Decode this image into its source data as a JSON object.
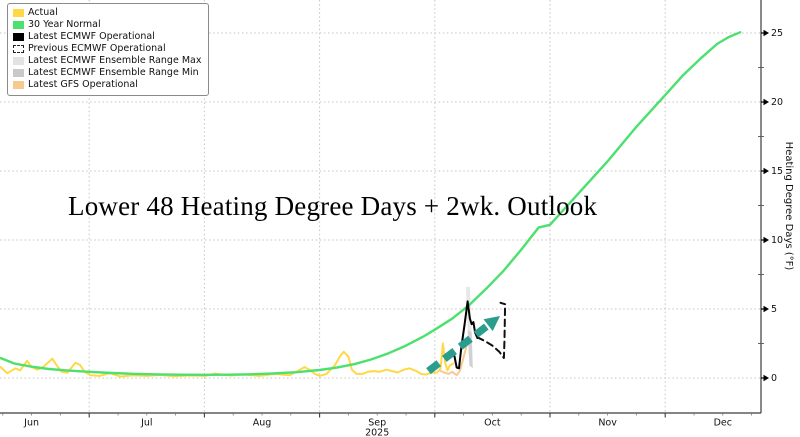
{
  "chart": {
    "title": "Lower 48 Heating Degree Days + 2wk. Outlook",
    "legend": [
      {
        "label": "Actual",
        "swatch": "solid",
        "color": "#ffd845"
      },
      {
        "label": "30 Year Normal",
        "swatch": "solid",
        "color": "#4ce06e"
      },
      {
        "label": "Latest ECMWF Operational",
        "swatch": "solid",
        "color": "#000000"
      },
      {
        "label": "Previous ECMWF Operational",
        "swatch": "dashed-outline",
        "color": "#222222"
      },
      {
        "label": "Latest ECMWF Ensemble Range Max",
        "swatch": "solid",
        "color": "#e2e2e2"
      },
      {
        "label": "Latest ECMWF Ensemble Range Min",
        "swatch": "solid",
        "color": "#c9c9c9"
      },
      {
        "label": "Latest GFS Operational",
        "swatch": "solid",
        "color": "#f6c98e"
      }
    ]
  },
  "chart_data": {
    "type": "line",
    "title": "Lower 48 Heating Degree Days + 2wk. Outlook",
    "xlabel": "",
    "ylabel": "Heating Degree Days (°F)",
    "x_unit_note": "decimal month of 2025: 6.0 = Jun 1, 7.0 = Jul 1 ... 13.0 = Jan 1",
    "x_range": [
      6.22,
      12.85
    ],
    "ylim": [
      0,
      25
    ],
    "grid": "dotted",
    "legend_position": "upper-left",
    "x_axis": {
      "month_labels": [
        "Jun",
        "Jul",
        "Aug",
        "Sep",
        "Oct",
        "Nov",
        "Dec"
      ],
      "first_month_number": 6,
      "year_label": "2025",
      "year_under_month": "Sep"
    },
    "y_axis": {
      "major_ticks": [
        0,
        5,
        10,
        15,
        20,
        25
      ],
      "minor_step": 2.5,
      "label": "Heating Degree Days (°F)",
      "side": "right"
    },
    "series": [
      {
        "name": "Actual",
        "color": "#ffd845",
        "style": "solid",
        "width": 2,
        "points": [
          [
            6.23,
            0.8
          ],
          [
            6.29,
            0.35
          ],
          [
            6.36,
            0.7
          ],
          [
            6.4,
            0.55
          ],
          [
            6.46,
            1.25
          ],
          [
            6.5,
            0.8
          ],
          [
            6.55,
            0.6
          ],
          [
            6.6,
            0.8
          ],
          [
            6.68,
            1.4
          ],
          [
            6.72,
            0.9
          ],
          [
            6.76,
            0.45
          ],
          [
            6.81,
            0.38
          ],
          [
            6.88,
            1.1
          ],
          [
            6.92,
            0.95
          ],
          [
            6.96,
            0.45
          ],
          [
            7.01,
            0.2
          ],
          [
            7.09,
            0.15
          ],
          [
            7.18,
            0.35
          ],
          [
            7.27,
            0.1
          ],
          [
            7.38,
            0.2
          ],
          [
            7.5,
            0.15
          ],
          [
            7.61,
            0.22
          ],
          [
            7.74,
            0.12
          ],
          [
            7.87,
            0.18
          ],
          [
            8.01,
            0.15
          ],
          [
            8.09,
            0.32
          ],
          [
            8.22,
            0.18
          ],
          [
            8.35,
            0.25
          ],
          [
            8.48,
            0.15
          ],
          [
            8.61,
            0.3
          ],
          [
            8.74,
            0.2
          ],
          [
            8.83,
            0.6
          ],
          [
            8.87,
            0.8
          ],
          [
            8.92,
            0.55
          ],
          [
            8.96,
            0.3
          ],
          [
            9.0,
            0.15
          ],
          [
            9.06,
            0.3
          ],
          [
            9.13,
            0.9
          ],
          [
            9.18,
            1.6
          ],
          [
            9.21,
            1.9
          ],
          [
            9.25,
            1.55
          ],
          [
            9.28,
            0.6
          ],
          [
            9.32,
            0.3
          ],
          [
            9.37,
            0.3
          ],
          [
            9.42,
            0.45
          ],
          [
            9.47,
            0.5
          ],
          [
            9.52,
            0.45
          ],
          [
            9.58,
            0.6
          ],
          [
            9.63,
            0.5
          ],
          [
            9.68,
            0.4
          ],
          [
            9.73,
            0.6
          ],
          [
            9.78,
            0.7
          ],
          [
            9.84,
            0.5
          ],
          [
            9.88,
            0.3
          ],
          [
            9.92,
            0.25
          ],
          [
            9.98,
            0.4
          ],
          [
            10.02,
            0.4
          ],
          [
            10.05,
            0.7
          ],
          [
            10.07,
            2.5
          ],
          [
            10.09,
            1.1
          ],
          [
            10.11,
            0.55
          ],
          [
            10.13,
            0.9
          ],
          [
            10.16,
            1.05
          ]
        ]
      },
      {
        "name": "Latest GFS Operational",
        "color": "#f6c98e",
        "style": "solid",
        "width": 2,
        "points": [
          [
            10.04,
            0.55
          ],
          [
            10.08,
            0.4
          ],
          [
            10.12,
            0.3
          ],
          [
            10.15,
            0.45
          ],
          [
            10.19,
            0.2
          ],
          [
            10.22,
            0.55
          ],
          [
            10.25,
            1.5
          ],
          [
            10.28,
            2.5
          ]
        ]
      },
      {
        "name": "30 Year Normal",
        "color": "#4ce06e",
        "style": "solid",
        "width": 2.4,
        "points": [
          [
            6.23,
            1.45
          ],
          [
            6.35,
            1.05
          ],
          [
            6.5,
            0.82
          ],
          [
            6.65,
            0.65
          ],
          [
            6.8,
            0.55
          ],
          [
            7.0,
            0.45
          ],
          [
            7.2,
            0.36
          ],
          [
            7.4,
            0.3
          ],
          [
            7.6,
            0.26
          ],
          [
            7.8,
            0.24
          ],
          [
            8.0,
            0.23
          ],
          [
            8.2,
            0.24
          ],
          [
            8.4,
            0.27
          ],
          [
            8.6,
            0.33
          ],
          [
            8.8,
            0.42
          ],
          [
            9.0,
            0.58
          ],
          [
            9.15,
            0.75
          ],
          [
            9.3,
            1.0
          ],
          [
            9.45,
            1.35
          ],
          [
            9.6,
            1.8
          ],
          [
            9.75,
            2.35
          ],
          [
            9.9,
            3.0
          ],
          [
            10.0,
            3.5
          ],
          [
            10.15,
            4.3
          ],
          [
            10.3,
            5.3
          ],
          [
            10.45,
            6.5
          ],
          [
            10.6,
            7.8
          ],
          [
            10.75,
            9.3
          ],
          [
            10.9,
            10.9
          ],
          [
            11.0,
            11.1
          ],
          [
            11.25,
            13.4
          ],
          [
            11.5,
            15.7
          ],
          [
            11.75,
            18.2
          ],
          [
            12.0,
            20.5
          ],
          [
            12.15,
            21.9
          ],
          [
            12.3,
            23.1
          ],
          [
            12.45,
            24.2
          ],
          [
            12.55,
            24.7
          ],
          [
            12.65,
            25.05
          ]
        ]
      },
      {
        "name": "Latest ECMWF Operational",
        "color": "#000000",
        "style": "solid",
        "width": 2,
        "points": [
          [
            10.17,
            1.6
          ],
          [
            10.19,
            0.75
          ],
          [
            10.21,
            0.7
          ],
          [
            10.23,
            2.2
          ],
          [
            10.26,
            4.0
          ],
          [
            10.285,
            5.55
          ],
          [
            10.305,
            4.3
          ],
          [
            10.32,
            3.9
          ],
          [
            10.335,
            4.05
          ],
          [
            10.35,
            3.3
          ],
          [
            10.37,
            2.9
          ]
        ]
      },
      {
        "name": "Previous ECMWF Operational",
        "color": "#111111",
        "style": "dashed",
        "width": 2,
        "points": [
          [
            10.37,
            2.95
          ],
          [
            10.43,
            2.7
          ],
          [
            10.5,
            2.35
          ],
          [
            10.56,
            1.9
          ],
          [
            10.6,
            1.45
          ],
          [
            10.605,
            2.8
          ],
          [
            10.61,
            5.35
          ],
          [
            10.57,
            5.45
          ]
        ]
      }
    ],
    "ranges": [
      {
        "name": "Latest ECMWF Ensemble Range Max",
        "color": "#e4e4e4",
        "polygon": [
          [
            10.27,
            6.6
          ],
          [
            10.305,
            6.6
          ],
          [
            10.32,
            3.3
          ],
          [
            10.285,
            3.5
          ]
        ]
      },
      {
        "name": "Latest ECMWF Ensemble Range Min",
        "color": "#c9c9c9",
        "polygon": [
          [
            10.285,
            3.5
          ],
          [
            10.32,
            3.3
          ],
          [
            10.33,
            0.7
          ],
          [
            10.3,
            0.9
          ]
        ]
      }
    ],
    "annotation_arrow": {
      "tail": [
        9.945,
        0.5
      ],
      "head": [
        10.566,
        4.49
      ],
      "color": "#2a9d8f",
      "style": "thick-dashed"
    }
  }
}
